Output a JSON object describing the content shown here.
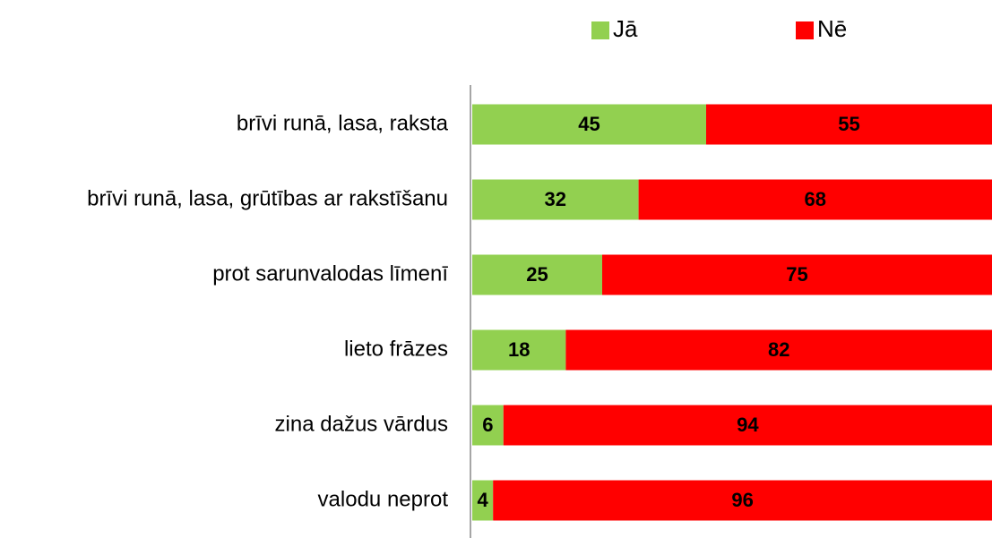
{
  "chart_data": {
    "type": "bar",
    "orientation": "horizontal",
    "stacked": true,
    "categories": [
      "brīvi runā, lasa, raksta",
      "brīvi runā, lasa, grūtības ar rakstīšanu",
      "prot sarunvalodas līmenī",
      "lieto frāzes",
      "zina dažus vārdus",
      "valodu neprot"
    ],
    "series": [
      {
        "name": "Jā",
        "color": "#92d050",
        "values": [
          45,
          32,
          25,
          18,
          6,
          4
        ]
      },
      {
        "name": "Nē",
        "color": "#ff0000",
        "values": [
          55,
          68,
          75,
          82,
          94,
          96
        ]
      }
    ],
    "xlim": [
      0,
      100
    ],
    "legend": "top"
  }
}
